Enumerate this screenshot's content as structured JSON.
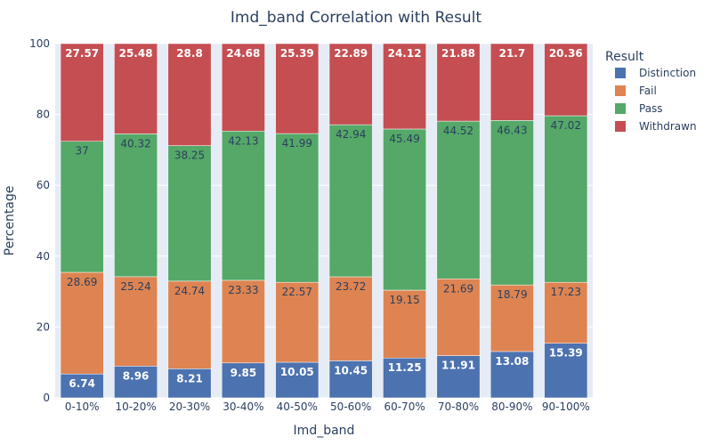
{
  "chart_data": {
    "type": "bar",
    "stacked": true,
    "title": "Imd_band Correlation with Result",
    "xlabel": "Imd_band",
    "ylabel": "Percentage",
    "ylim": [
      0,
      100
    ],
    "yticks": [
      0,
      20,
      40,
      60,
      80,
      100
    ],
    "grid": true,
    "legend_title": "Result",
    "legend_position": "right",
    "categories": [
      "0-10%",
      "10-20%",
      "20-30%",
      "30-40%",
      "40-50%",
      "50-60%",
      "60-70%",
      "70-80%",
      "80-90%",
      "90-100%"
    ],
    "series": [
      {
        "name": "Distinction",
        "color": "#4c72b0",
        "label_style": "light",
        "values": [
          6.74,
          8.96,
          8.21,
          9.85,
          10.05,
          10.45,
          11.25,
          11.91,
          13.08,
          15.39
        ]
      },
      {
        "name": "Fail",
        "color": "#dd8452",
        "label_style": "dark",
        "values": [
          28.69,
          25.24,
          24.74,
          23.33,
          22.57,
          23.72,
          19.15,
          21.69,
          18.79,
          17.23
        ]
      },
      {
        "name": "Pass",
        "color": "#55a868",
        "label_style": "dark",
        "values": [
          37,
          40.32,
          38.25,
          42.13,
          41.99,
          42.94,
          45.49,
          44.52,
          46.43,
          47.02
        ]
      },
      {
        "name": "Withdrawn",
        "color": "#c44e52",
        "label_style": "light",
        "values": [
          27.57,
          25.48,
          28.8,
          24.68,
          25.39,
          22.89,
          24.12,
          21.88,
          21.7,
          20.36
        ]
      }
    ]
  },
  "colors": {
    "plot_background": "#e5ecf6",
    "gridline": "#ffffff",
    "text": "#2a3f5f"
  }
}
